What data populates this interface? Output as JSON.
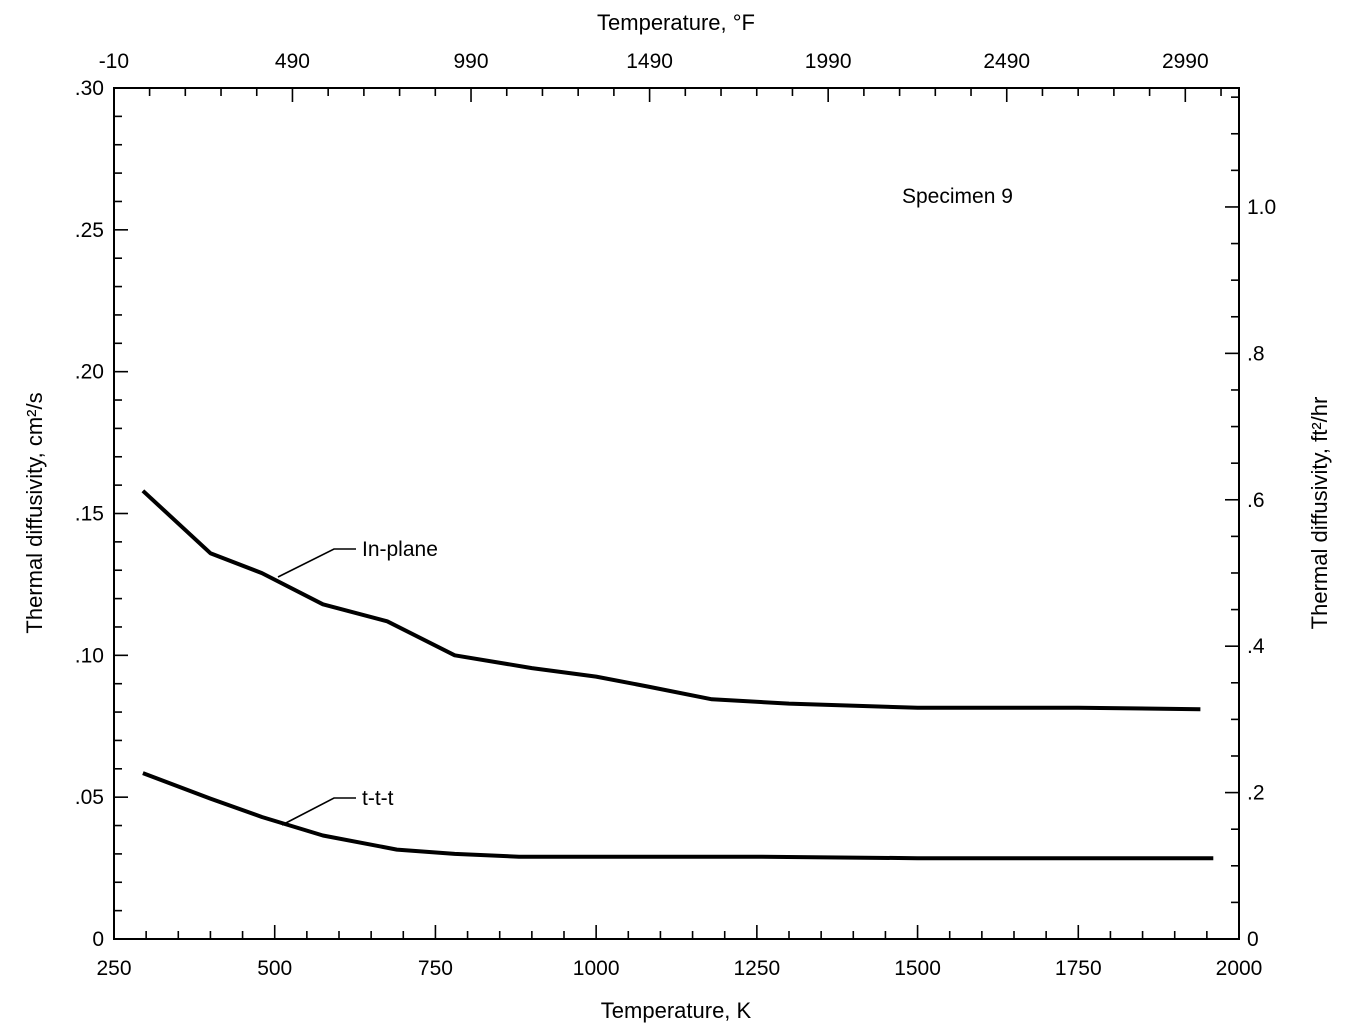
{
  "chart_data": {
    "type": "line",
    "title": "",
    "xlabel": "Temperature, K",
    "x2label": "Temperature, °F",
    "ylabel": "Thermal diffusivity, cm²/s",
    "y2label": "Thermal diffusivity, ft²/hr",
    "xlim": [
      250,
      2000
    ],
    "ylim": [
      0,
      0.3
    ],
    "y2lim": [
      0,
      1.1625
    ],
    "grid": false,
    "x_ticks": [
      250,
      500,
      750,
      1000,
      1250,
      1500,
      1750,
      2000
    ],
    "x_tick_labels": [
      "250",
      "500",
      "750",
      "1000",
      "1250",
      "1500",
      "1750",
      "2000"
    ],
    "y_ticks": [
      0,
      0.05,
      0.1,
      0.15,
      0.2,
      0.25,
      0.3
    ],
    "y_tick_labels": [
      "0",
      ".05",
      ".10",
      ".15",
      ".20",
      ".25",
      ".30"
    ],
    "x2_ticks": [
      -10,
      490,
      990,
      1490,
      1990,
      2490,
      2990
    ],
    "x2_tick_labels": [
      "-10",
      "490",
      "990",
      "1490",
      "1990",
      "2490",
      "2990"
    ],
    "y2_ticks": [
      0,
      0.2,
      0.4,
      0.6,
      0.8,
      1.0
    ],
    "y2_tick_labels": [
      "0",
      ".2",
      ".4",
      ".6",
      ".8",
      "1.0"
    ],
    "annotations": [
      "Specimen 9"
    ],
    "series": [
      {
        "name": "In-plane",
        "x": [
          295,
          400,
          480,
          575,
          675,
          780,
          900,
          1000,
          1080,
          1180,
          1300,
          1500,
          1750,
          1940
        ],
        "values": [
          0.158,
          0.136,
          0.129,
          0.118,
          0.112,
          0.1,
          0.0955,
          0.0925,
          0.089,
          0.0845,
          0.083,
          0.0815,
          0.0815,
          0.081
        ]
      },
      {
        "name": "t-t-t",
        "x": [
          295,
          400,
          480,
          575,
          690,
          780,
          880,
          1000,
          1250,
          1500,
          1750,
          1960
        ],
        "values": [
          0.0585,
          0.0495,
          0.043,
          0.0365,
          0.0315,
          0.03,
          0.029,
          0.029,
          0.029,
          0.0285,
          0.0285,
          0.0285
        ]
      }
    ]
  }
}
